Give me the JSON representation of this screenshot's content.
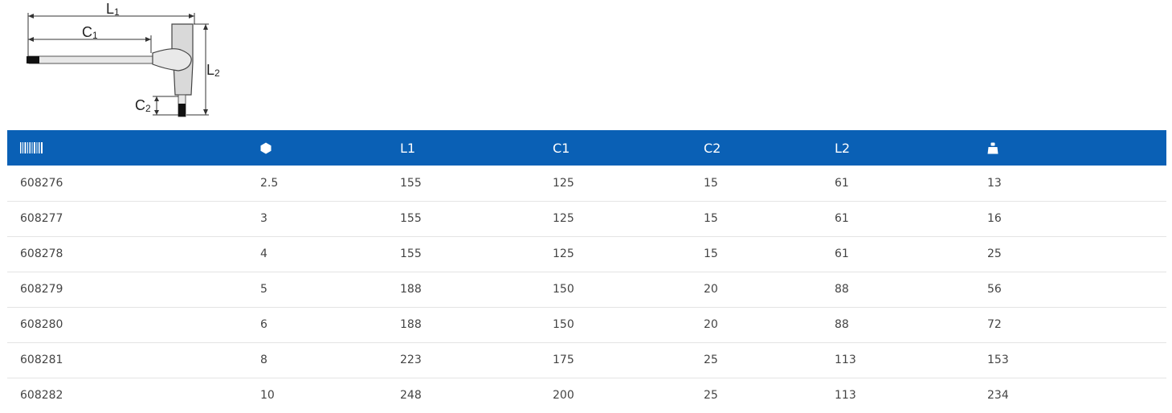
{
  "diagram": {
    "labels": {
      "l1": "L",
      "l1_sub": "1",
      "c1": "C",
      "c1_sub": "1",
      "l2": "L",
      "l2_sub": "2",
      "c2": "C",
      "c2_sub": "2"
    }
  },
  "table": {
    "header": {
      "article_icon": "barcode-icon",
      "size_icon": "hexagon-icon",
      "l1": "L1",
      "c1": "C1",
      "c2": "C2",
      "l2": "L2",
      "weight_icon": "weight-icon"
    },
    "rows": [
      {
        "article": "608276",
        "size": "2.5",
        "l1": "155",
        "c1": "125",
        "c2": "15",
        "l2": "61",
        "weight": "13"
      },
      {
        "article": "608277",
        "size": "3",
        "l1": "155",
        "c1": "125",
        "c2": "15",
        "l2": "61",
        "weight": "16"
      },
      {
        "article": "608278",
        "size": "4",
        "l1": "155",
        "c1": "125",
        "c2": "15",
        "l2": "61",
        "weight": "25"
      },
      {
        "article": "608279",
        "size": "5",
        "l1": "188",
        "c1": "150",
        "c2": "20",
        "l2": "88",
        "weight": "56"
      },
      {
        "article": "608280",
        "size": "6",
        "l1": "188",
        "c1": "150",
        "c2": "20",
        "l2": "88",
        "weight": "72"
      },
      {
        "article": "608281",
        "size": "8",
        "l1": "223",
        "c1": "175",
        "c2": "25",
        "l2": "113",
        "weight": "153"
      },
      {
        "article": "608282",
        "size": "10",
        "l1": "248",
        "c1": "200",
        "c2": "25",
        "l2": "113",
        "weight": "234"
      }
    ]
  },
  "colors": {
    "header_bg": "#0a60b5",
    "header_text": "#ffffff",
    "row_divider": "#e4e4e4",
    "cell_text": "#444444"
  }
}
